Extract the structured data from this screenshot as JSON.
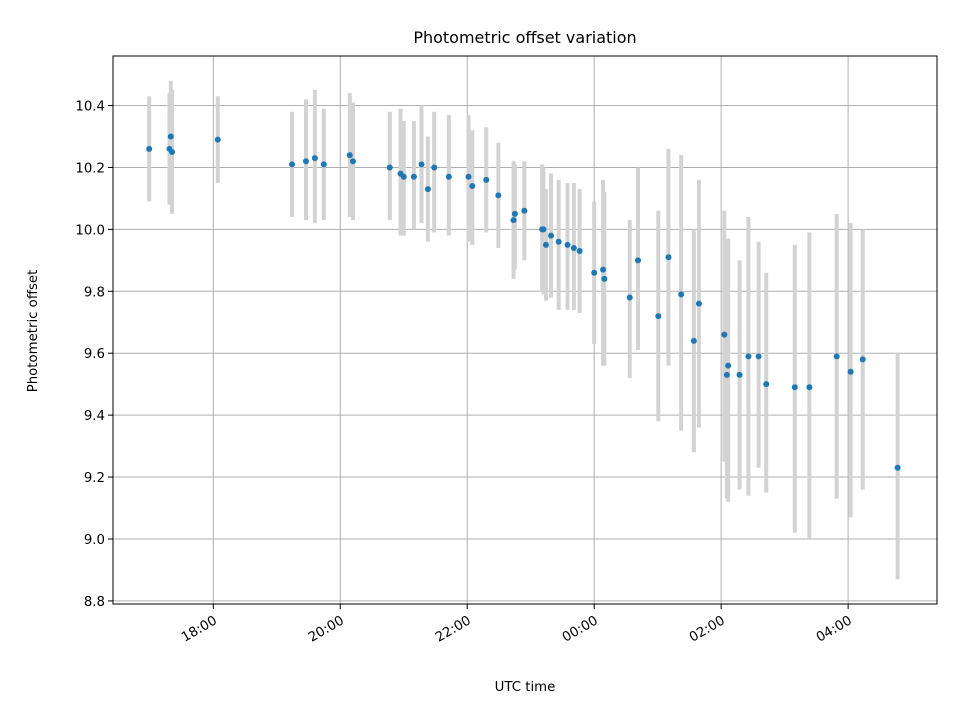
{
  "chart_data": {
    "type": "scatter",
    "title": "Photometric offset variation",
    "xlabel": "UTC time",
    "ylabel": "Photometric offset",
    "x_unit": "UTC time (hours on the observing night; values >= 24 fall after midnight)",
    "xlim": [
      16.42,
      29.4
    ],
    "ylim": [
      8.79,
      10.56
    ],
    "grid": true,
    "colors": {
      "point": "#1f77b4",
      "errorbar": "#d3d3d3",
      "grid": "#b0b0b0"
    },
    "x_ticks": [
      {
        "value": 18,
        "label": "18:00"
      },
      {
        "value": 20,
        "label": "20:00"
      },
      {
        "value": 22,
        "label": "22:00"
      },
      {
        "value": 24,
        "label": "00:00"
      },
      {
        "value": 26,
        "label": "02:00"
      },
      {
        "value": 28,
        "label": "04:00"
      }
    ],
    "y_ticks": [
      {
        "value": 8.8,
        "label": "8.8"
      },
      {
        "value": 9.0,
        "label": "9.0"
      },
      {
        "value": 9.2,
        "label": "9.2"
      },
      {
        "value": 9.4,
        "label": "9.4"
      },
      {
        "value": 9.6,
        "label": "9.6"
      },
      {
        "value": 9.8,
        "label": "9.8"
      },
      {
        "value": 10.0,
        "label": "10.0"
      },
      {
        "value": 10.2,
        "label": "10.2"
      },
      {
        "value": 10.4,
        "label": "10.4"
      }
    ],
    "series": [
      {
        "x": [
          16.99,
          17.31,
          17.33,
          17.35,
          18.07,
          19.24,
          19.46,
          19.6,
          19.74,
          20.15,
          20.2,
          20.78,
          20.95,
          21.0,
          21.16,
          21.28,
          21.38,
          21.48,
          21.71,
          22.02,
          22.08,
          22.3,
          22.49,
          22.73,
          22.75,
          22.9,
          23.18,
          23.2,
          23.24,
          23.32,
          23.44,
          23.58,
          23.68,
          23.77,
          24.0,
          24.14,
          24.16,
          24.56,
          24.69,
          25.01,
          25.17,
          25.37,
          25.57,
          25.65,
          26.05,
          26.09,
          26.11,
          26.29,
          26.43,
          26.59,
          26.71,
          27.16,
          27.39,
          27.82,
          28.04,
          28.23,
          28.78
        ],
        "y": [
          10.26,
          10.26,
          10.3,
          10.25,
          10.29,
          10.21,
          10.22,
          10.23,
          10.21,
          10.24,
          10.22,
          10.2,
          10.18,
          10.17,
          10.17,
          10.21,
          10.13,
          10.2,
          10.17,
          10.17,
          10.14,
          10.16,
          10.11,
          10.03,
          10.05,
          10.06,
          10.0,
          10.0,
          9.95,
          9.98,
          9.96,
          9.95,
          9.94,
          9.93,
          9.86,
          9.87,
          9.84,
          9.78,
          9.9,
          9.72,
          9.91,
          9.79,
          9.64,
          9.76,
          9.66,
          9.53,
          9.56,
          9.53,
          9.59,
          9.59,
          9.5,
          9.49,
          9.49,
          9.59,
          9.54,
          9.58,
          9.23
        ],
        "y_low": [
          10.09,
          10.08,
          10.08,
          10.05,
          10.15,
          10.04,
          10.03,
          10.02,
          10.03,
          10.04,
          10.03,
          10.03,
          9.98,
          9.98,
          10.0,
          10.02,
          9.96,
          9.99,
          9.98,
          9.96,
          9.95,
          9.99,
          9.94,
          9.84,
          9.87,
          9.9,
          9.8,
          9.79,
          9.77,
          9.78,
          9.74,
          9.74,
          9.74,
          9.73,
          9.63,
          9.56,
          9.56,
          9.52,
          9.61,
          9.38,
          9.56,
          9.35,
          9.28,
          9.36,
          9.25,
          9.13,
          9.12,
          9.16,
          9.14,
          9.23,
          9.15,
          9.02,
          9.0,
          9.13,
          9.07,
          9.16,
          8.87
        ],
        "y_high": [
          10.43,
          10.44,
          10.48,
          10.45,
          10.43,
          10.38,
          10.42,
          10.45,
          10.39,
          10.44,
          10.41,
          10.38,
          10.39,
          10.35,
          10.35,
          10.4,
          10.3,
          10.38,
          10.37,
          10.37,
          10.32,
          10.33,
          10.28,
          10.22,
          10.21,
          10.22,
          10.21,
          10.2,
          10.13,
          10.18,
          10.16,
          10.15,
          10.15,
          10.13,
          10.09,
          10.16,
          10.12,
          10.03,
          10.2,
          10.06,
          10.26,
          10.24,
          10.0,
          10.16,
          10.06,
          9.93,
          9.97,
          9.9,
          10.04,
          9.96,
          9.86,
          9.95,
          9.99,
          10.05,
          10.02,
          10.0,
          9.6
        ]
      }
    ]
  }
}
